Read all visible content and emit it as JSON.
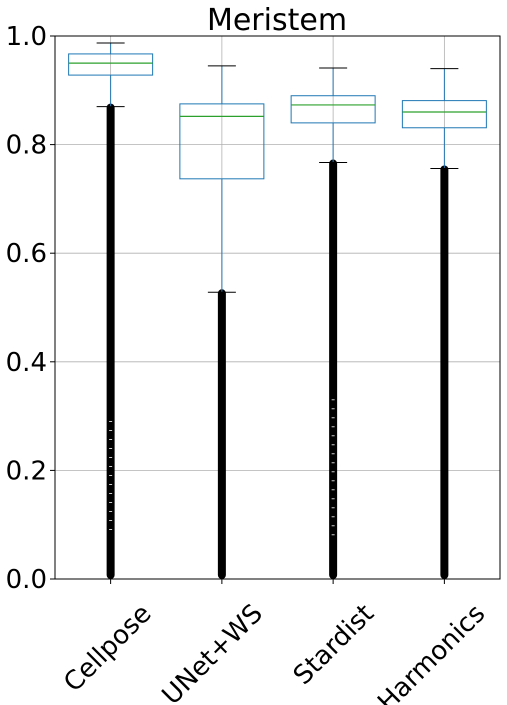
{
  "chart_data": {
    "type": "box",
    "title": "Meristem",
    "xlabel": "",
    "ylabel": "",
    "ylim": [
      0.0,
      1.0
    ],
    "yticks": [
      0.0,
      0.2,
      0.4,
      0.6,
      0.8,
      1.0
    ],
    "ytick_labels": [
      "0.0",
      "0.2",
      "0.4",
      "0.6",
      "0.8",
      "1.0"
    ],
    "grid": true,
    "colors": {
      "box": "#1f77b4",
      "median": "#2ca02c",
      "whisker": "#1f77b4",
      "cap": "#000000",
      "flier": "#000000",
      "grid": "#b0b0b0"
    },
    "categories": [
      "Cellpose",
      "UNet+WS",
      "Stardist",
      "Harmonics"
    ],
    "series": [
      {
        "category": "Cellpose",
        "whisker_low": 0.87,
        "q1": 0.928,
        "median": 0.95,
        "q3": 0.967,
        "whisker_high": 0.987,
        "outliers_range": [
          0.0,
          0.87
        ],
        "sparse_outliers_range": [
          0.09,
          0.29
        ]
      },
      {
        "category": "UNet+WS",
        "whisker_low": 0.528,
        "q1": 0.737,
        "median": 0.852,
        "q3": 0.875,
        "whisker_high": 0.945,
        "outliers_range": [
          0.0,
          0.528
        ]
      },
      {
        "category": "Stardist",
        "whisker_low": 0.767,
        "q1": 0.84,
        "median": 0.873,
        "q3": 0.89,
        "whisker_high": 0.941,
        "outliers_range": [
          0.0,
          0.767
        ],
        "sparse_outliers_range": [
          0.07,
          0.33
        ]
      },
      {
        "category": "Harmonics",
        "whisker_low": 0.756,
        "q1": 0.831,
        "median": 0.86,
        "q3": 0.881,
        "whisker_high": 0.94,
        "outliers_range": [
          0.0,
          0.756
        ]
      }
    ]
  }
}
